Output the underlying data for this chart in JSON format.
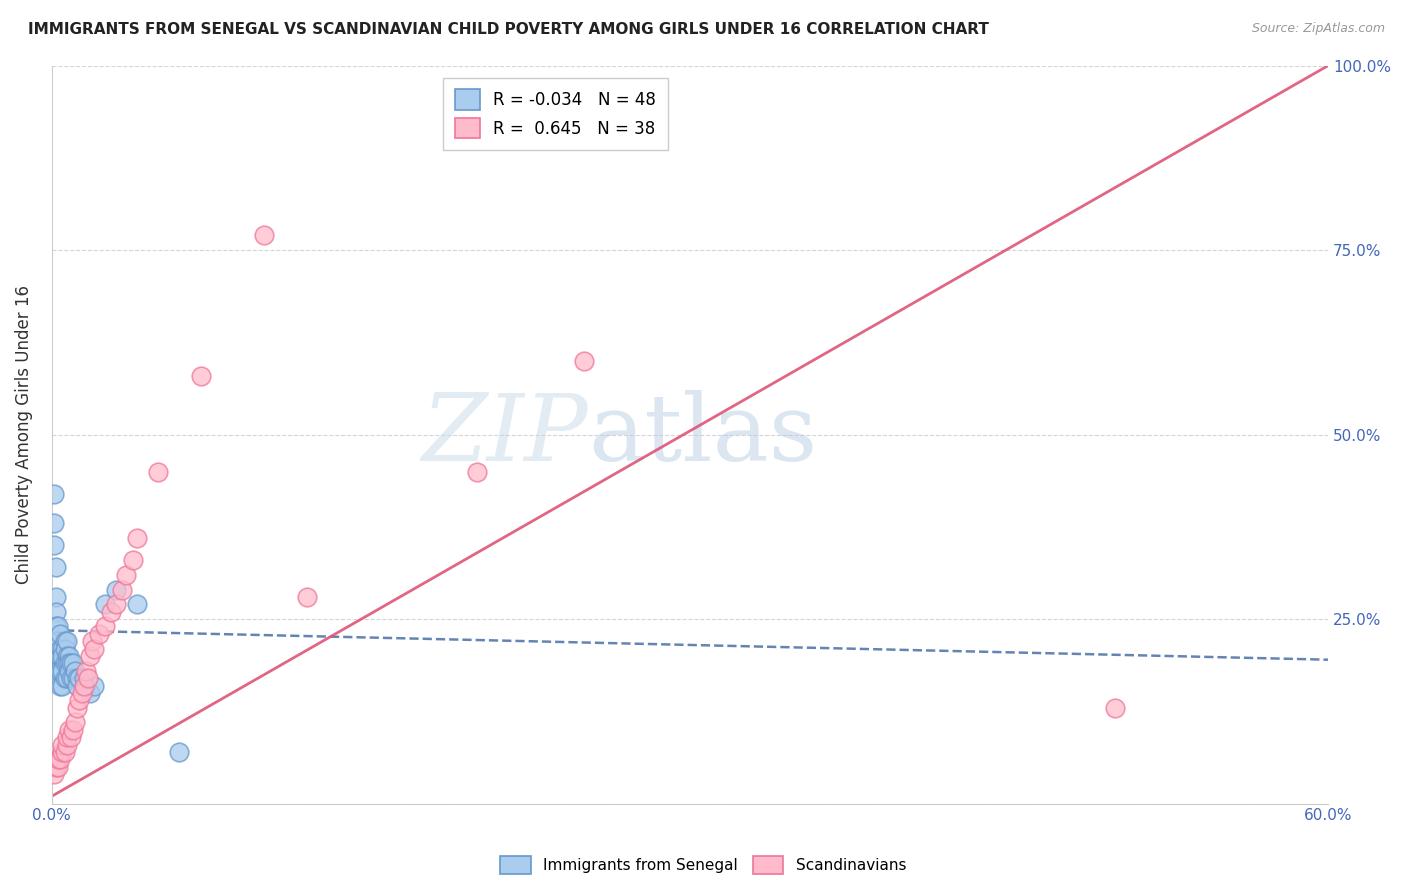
{
  "title": "IMMIGRANTS FROM SENEGAL VS SCANDINAVIAN CHILD POVERTY AMONG GIRLS UNDER 16 CORRELATION CHART",
  "source": "Source: ZipAtlas.com",
  "ylabel": "Child Poverty Among Girls Under 16",
  "legend_label1": "Immigrants from Senegal",
  "legend_label2": "Scandinavians",
  "R1": "-0.034",
  "N1": "48",
  "R2": "0.645",
  "N2": "38",
  "xlim": [
    0.0,
    0.6
  ],
  "ylim": [
    0.0,
    1.0
  ],
  "xticks": [
    0.0,
    0.1,
    0.2,
    0.3,
    0.4,
    0.5,
    0.6
  ],
  "xticklabels": [
    "0.0%",
    "",
    "",
    "",
    "",
    "",
    "60.0%"
  ],
  "yticks": [
    0.0,
    0.25,
    0.5,
    0.75,
    1.0
  ],
  "right_yticklabels": [
    "",
    "25.0%",
    "50.0%",
    "75.0%",
    "100.0%"
  ],
  "color_blue_face": "#aaccee",
  "color_blue_edge": "#6699cc",
  "color_pink_face": "#ffbbcc",
  "color_pink_edge": "#ee7799",
  "color_blue_trendline": "#5577aa",
  "color_pink_trendline": "#dd5577",
  "background_color": "#ffffff",
  "watermark": "ZIPatlas",
  "blue_x": [
    0.001,
    0.001,
    0.001,
    0.002,
    0.002,
    0.002,
    0.002,
    0.002,
    0.003,
    0.003,
    0.003,
    0.003,
    0.004,
    0.004,
    0.004,
    0.004,
    0.004,
    0.005,
    0.005,
    0.005,
    0.005,
    0.006,
    0.006,
    0.006,
    0.006,
    0.007,
    0.007,
    0.007,
    0.007,
    0.008,
    0.008,
    0.008,
    0.009,
    0.009,
    0.01,
    0.01,
    0.011,
    0.012,
    0.012,
    0.013,
    0.015,
    0.016,
    0.018,
    0.02,
    0.025,
    0.03,
    0.04,
    0.06
  ],
  "blue_y": [
    0.42,
    0.38,
    0.35,
    0.32,
    0.28,
    0.26,
    0.24,
    0.22,
    0.24,
    0.22,
    0.2,
    0.18,
    0.23,
    0.21,
    0.2,
    0.18,
    0.16,
    0.21,
    0.2,
    0.18,
    0.16,
    0.22,
    0.21,
    0.19,
    0.17,
    0.22,
    0.2,
    0.19,
    0.17,
    0.2,
    0.19,
    0.18,
    0.19,
    0.17,
    0.19,
    0.17,
    0.18,
    0.17,
    0.16,
    0.17,
    0.17,
    0.16,
    0.15,
    0.16,
    0.27,
    0.29,
    0.27,
    0.07
  ],
  "pink_x": [
    0.001,
    0.002,
    0.003,
    0.003,
    0.004,
    0.005,
    0.005,
    0.006,
    0.007,
    0.007,
    0.008,
    0.009,
    0.01,
    0.011,
    0.012,
    0.013,
    0.014,
    0.015,
    0.016,
    0.017,
    0.018,
    0.019,
    0.02,
    0.022,
    0.025,
    0.028,
    0.03,
    0.033,
    0.035,
    0.038,
    0.04,
    0.05,
    0.07,
    0.1,
    0.12,
    0.2,
    0.25,
    0.5
  ],
  "pink_y": [
    0.04,
    0.05,
    0.05,
    0.06,
    0.06,
    0.07,
    0.08,
    0.07,
    0.08,
    0.09,
    0.1,
    0.09,
    0.1,
    0.11,
    0.13,
    0.14,
    0.15,
    0.16,
    0.18,
    0.17,
    0.2,
    0.22,
    0.21,
    0.23,
    0.24,
    0.26,
    0.27,
    0.29,
    0.31,
    0.33,
    0.36,
    0.45,
    0.58,
    0.77,
    0.28,
    0.45,
    0.6,
    0.13
  ],
  "blue_trend": [
    0.0,
    0.6,
    0.235,
    0.195
  ],
  "pink_trend": [
    0.0,
    0.6,
    0.01,
    1.0
  ]
}
